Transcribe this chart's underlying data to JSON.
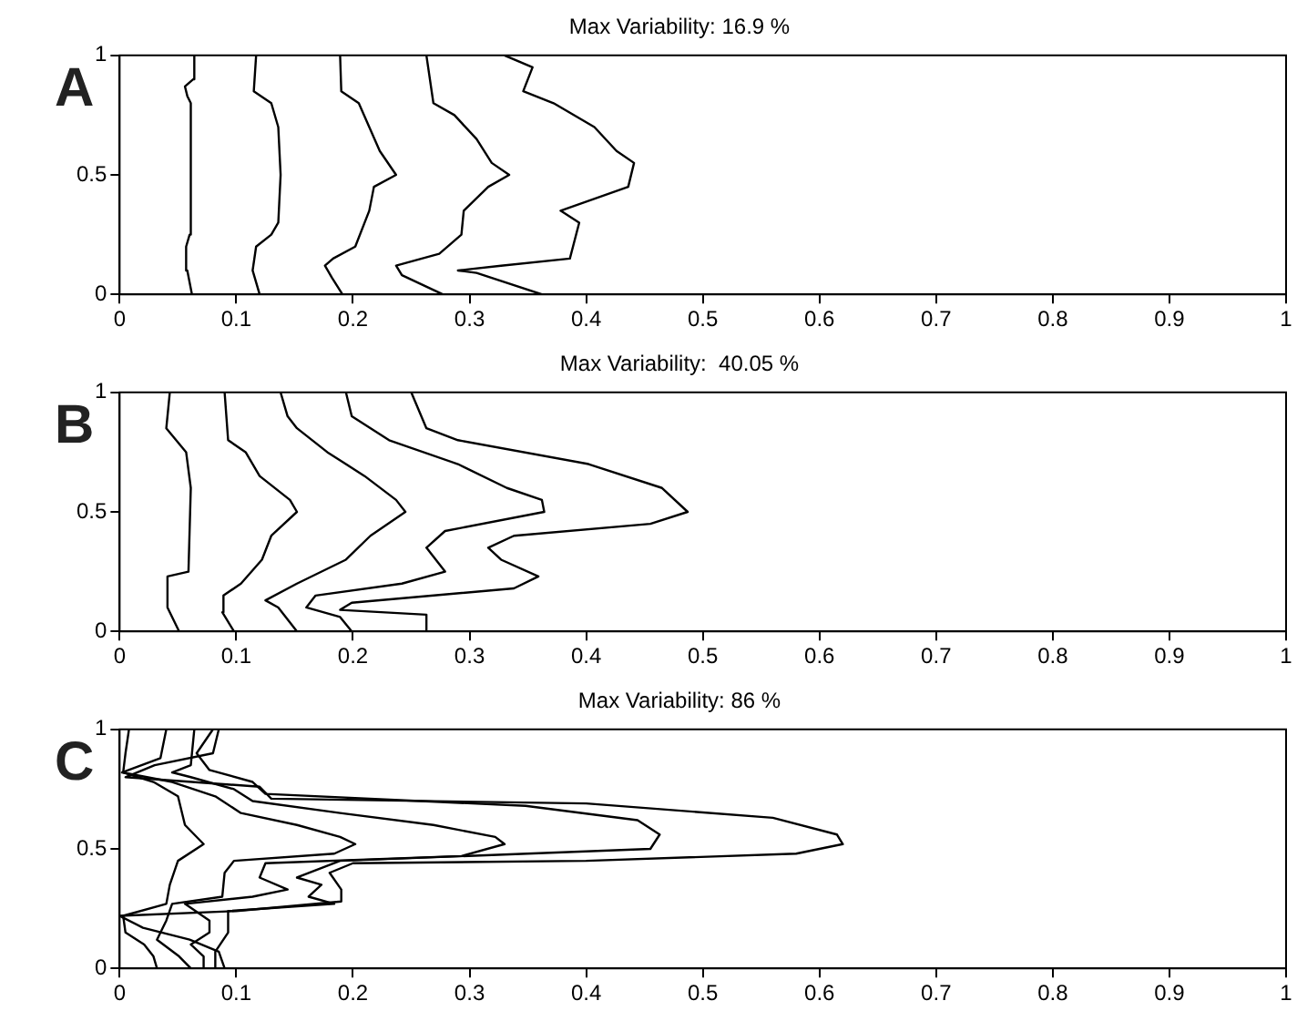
{
  "chart_data": [
    {
      "type": "line",
      "title": "Max Variability: 16.9 %",
      "annotations": [
        "A"
      ],
      "xlim": [
        0,
        1
      ],
      "ylim": [
        0,
        1
      ],
      "xticks": [
        0,
        0.1,
        0.2,
        0.3,
        0.4,
        0.5,
        0.6,
        0.7,
        0.8,
        0.9,
        1
      ],
      "yticks": [
        0,
        0.5,
        1
      ],
      "grid": false,
      "legend": false,
      "marker": "none",
      "line_style": "solid",
      "series": [
        {
          "color": "#000000",
          "x": [
            0.062,
            0.058,
            0.057,
            0.06,
            0.061,
            0.058,
            0.056,
            0.063,
            0.064
          ],
          "values": [
            0,
            0.1,
            0.2,
            0.25,
            0.8,
            0.83,
            0.87,
            0.9,
            1
          ]
        },
        {
          "color": "#000000",
          "x": [
            0.12,
            0.114,
            0.117,
            0.13,
            0.136,
            0.138,
            0.136,
            0.13,
            0.115,
            0.117
          ],
          "values": [
            0,
            0.1,
            0.2,
            0.25,
            0.3,
            0.5,
            0.7,
            0.8,
            0.85,
            1
          ]
        },
        {
          "color": "#000000",
          "x": [
            0.191,
            0.182,
            0.176,
            0.183,
            0.202,
            0.214,
            0.218,
            0.237,
            0.223,
            0.214,
            0.205,
            0.19,
            0.189
          ],
          "values": [
            0,
            0.07,
            0.12,
            0.15,
            0.2,
            0.35,
            0.45,
            0.5,
            0.6,
            0.7,
            0.8,
            0.85,
            1
          ]
        },
        {
          "color": "#000000",
          "x": [
            0.277,
            0.242,
            0.237,
            0.274,
            0.293,
            0.295,
            0.316,
            0.334,
            0.319,
            0.306,
            0.287,
            0.269,
            0.263
          ],
          "values": [
            0,
            0.08,
            0.12,
            0.17,
            0.25,
            0.35,
            0.45,
            0.5,
            0.55,
            0.65,
            0.75,
            0.8,
            1
          ]
        },
        {
          "color": "#000000",
          "x": [
            0.362,
            0.306,
            0.29,
            0.327,
            0.386,
            0.394,
            0.378,
            0.436,
            0.441,
            0.426,
            0.407,
            0.372,
            0.346,
            0.354,
            0.33
          ],
          "values": [
            0,
            0.09,
            0.1,
            0.12,
            0.15,
            0.3,
            0.35,
            0.45,
            0.55,
            0.6,
            0.7,
            0.8,
            0.85,
            0.95,
            1
          ]
        }
      ]
    },
    {
      "type": "line",
      "title": "Max Variability:  40.05 %",
      "annotations": [
        "B"
      ],
      "xlim": [
        0,
        1
      ],
      "ylim": [
        0,
        1
      ],
      "xticks": [
        0,
        0.1,
        0.2,
        0.3,
        0.4,
        0.5,
        0.6,
        0.7,
        0.8,
        0.9,
        1
      ],
      "yticks": [
        0,
        0.5,
        1
      ],
      "grid": false,
      "legend": false,
      "marker": "none",
      "line_style": "solid",
      "series": [
        {
          "color": "#000000",
          "x": [
            0.051,
            0.041,
            0.041,
            0.059,
            0.061,
            0.057,
            0.04,
            0.043
          ],
          "values": [
            0,
            0.1,
            0.23,
            0.25,
            0.6,
            0.75,
            0.85,
            1
          ]
        },
        {
          "color": "#000000",
          "x": [
            0.098,
            0.088,
            0.089,
            0.104,
            0.122,
            0.13,
            0.152,
            0.146,
            0.12,
            0.108,
            0.093,
            0.09
          ],
          "values": [
            0,
            0.08,
            0.15,
            0.2,
            0.3,
            0.4,
            0.5,
            0.55,
            0.65,
            0.75,
            0.8,
            1
          ]
        },
        {
          "color": "#000000",
          "x": [
            0.152,
            0.136,
            0.125,
            0.152,
            0.194,
            0.215,
            0.245,
            0.237,
            0.21,
            0.178,
            0.152,
            0.144,
            0.138
          ],
          "values": [
            0,
            0.1,
            0.13,
            0.2,
            0.3,
            0.4,
            0.5,
            0.55,
            0.65,
            0.75,
            0.85,
            0.9,
            1
          ]
        },
        {
          "color": "#000000",
          "x": [
            0.199,
            0.189,
            0.16,
            0.168,
            0.242,
            0.279,
            0.263,
            0.279,
            0.364,
            0.362,
            0.332,
            0.29,
            0.231,
            0.199,
            0.194
          ],
          "values": [
            0,
            0.06,
            0.1,
            0.15,
            0.2,
            0.25,
            0.35,
            0.42,
            0.5,
            0.55,
            0.6,
            0.7,
            0.8,
            0.9,
            1
          ]
        },
        {
          "color": "#000000",
          "x": [
            0.263,
            0.263,
            0.189,
            0.199,
            0.338,
            0.359,
            0.327,
            0.316,
            0.338,
            0.455,
            0.487,
            0.465,
            0.402,
            0.29,
            0.263,
            0.25
          ],
          "values": [
            0,
            0.07,
            0.09,
            0.12,
            0.18,
            0.23,
            0.3,
            0.35,
            0.4,
            0.45,
            0.5,
            0.6,
            0.7,
            0.8,
            0.85,
            1
          ]
        }
      ]
    },
    {
      "type": "line",
      "title": "Max Variability: 86 %",
      "annotations": [
        "C"
      ],
      "xlim": [
        0,
        1
      ],
      "ylim": [
        0,
        1
      ],
      "xticks": [
        0,
        0.1,
        0.2,
        0.3,
        0.4,
        0.5,
        0.6,
        0.7,
        0.8,
        0.9,
        1
      ],
      "yticks": [
        0,
        0.5,
        1
      ],
      "grid": false,
      "legend": false,
      "marker": "none",
      "line_style": "solid",
      "series": [
        {
          "color": "#000000",
          "x": [
            0.032,
            0.029,
            0.021,
            0.005,
            0.003,
            0.04,
            0.043,
            0.05,
            0.072,
            0.056,
            0.05,
            0.029,
            0.003,
            0.005,
            0.008
          ],
          "values": [
            0,
            0.05,
            0.1,
            0.15,
            0.22,
            0.27,
            0.35,
            0.45,
            0.52,
            0.6,
            0.72,
            0.78,
            0.82,
            0.9,
            1
          ]
        },
        {
          "color": "#000000",
          "x": [
            0.061,
            0.051,
            0.032,
            0.04,
            0.045,
            0.088,
            0.09,
            0.098,
            0.184,
            0.202,
            0.189,
            0.152,
            0.104,
            0.082,
            0.045,
            0.002,
            0.035,
            0.04
          ],
          "values": [
            0,
            0.05,
            0.12,
            0.2,
            0.27,
            0.3,
            0.4,
            0.45,
            0.48,
            0.52,
            0.55,
            0.6,
            0.65,
            0.72,
            0.78,
            0.82,
            0.88,
            1
          ]
        },
        {
          "color": "#000000",
          "x": [
            0.072,
            0.072,
            0.061,
            0.077,
            0.077,
            0.056,
            0.114,
            0.144,
            0.12,
            0.125,
            0.293,
            0.33,
            0.322,
            0.269,
            0.189,
            0.114,
            0.098,
            0.061,
            0.045,
            0.061,
            0.064
          ],
          "values": [
            0,
            0.05,
            0.1,
            0.15,
            0.2,
            0.27,
            0.3,
            0.33,
            0.38,
            0.44,
            0.47,
            0.52,
            0.55,
            0.6,
            0.65,
            0.7,
            0.75,
            0.8,
            0.82,
            0.85,
            1
          ]
        },
        {
          "color": "#000000",
          "x": [
            0.082,
            0.082,
            0.093,
            0.093,
            0.184,
            0.162,
            0.173,
            0.152,
            0.189,
            0.455,
            0.463,
            0.444,
            0.348,
            0.125,
            0.114,
            0.077,
            0.066,
            0.08
          ],
          "values": [
            0,
            0.07,
            0.15,
            0.24,
            0.27,
            0.3,
            0.35,
            0.38,
            0.45,
            0.5,
            0.56,
            0.62,
            0.68,
            0.73,
            0.78,
            0.83,
            0.9,
            1
          ]
        },
        {
          "color": "#000000",
          "x": [
            0.09,
            0.085,
            0.06,
            0.02,
            0.0,
            0.1,
            0.19,
            0.19,
            0.18,
            0.2,
            0.4,
            0.58,
            0.62,
            0.615,
            0.56,
            0.4,
            0.13,
            0.12,
            0.005,
            0.03,
            0.08,
            0.085
          ],
          "values": [
            0,
            0.07,
            0.12,
            0.17,
            0.22,
            0.24,
            0.28,
            0.33,
            0.4,
            0.44,
            0.45,
            0.48,
            0.52,
            0.56,
            0.63,
            0.69,
            0.71,
            0.76,
            0.8,
            0.85,
            0.9,
            1
          ]
        }
      ]
    }
  ]
}
